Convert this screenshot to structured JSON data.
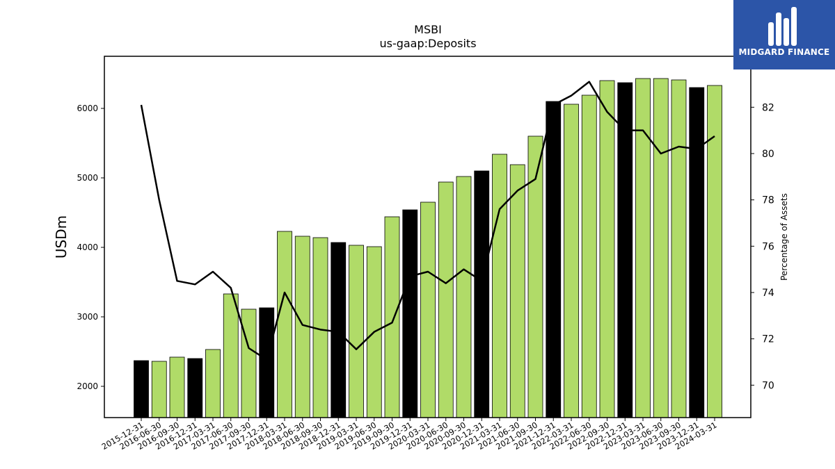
{
  "title": "MSBI",
  "subtitle": "us-gaap:Deposits",
  "logo": {
    "text": "MIDGARD FINANCE",
    "background": "#2c55a8"
  },
  "colors": {
    "bar_regular": "#b0db68",
    "bar_year_end": "#000000",
    "line": "#000000"
  },
  "chart_data": {
    "type": "bar",
    "title": "MSBI",
    "subtitle": "us-gaap:Deposits",
    "ylabel": "USDm",
    "y2label": "Percentage of Assets",
    "ylim": [
      1550,
      6750
    ],
    "y2lim": [
      68.6,
      84.2
    ],
    "yticks": [
      2000,
      3000,
      4000,
      5000,
      6000
    ],
    "y2ticks": [
      70,
      72,
      74,
      76,
      78,
      80,
      82
    ],
    "grid": false,
    "categories": [
      "2015-12-31",
      "2016-06-30",
      "2016-09-30",
      "2016-12-31",
      "2017-03-31",
      "2017-06-30",
      "2017-09-30",
      "2017-12-31",
      "2018-03-31",
      "2018-06-30",
      "2018-09-30",
      "2018-12-31",
      "2019-03-31",
      "2019-06-30",
      "2019-09-30",
      "2019-12-31",
      "2020-03-31",
      "2020-06-30",
      "2020-09-30",
      "2020-12-31",
      "2021-03-31",
      "2021-06-30",
      "2021-09-30",
      "2021-12-31",
      "2022-03-31",
      "2022-06-30",
      "2022-09-30",
      "2022-12-31",
      "2023-03-31",
      "2023-06-30",
      "2023-09-30",
      "2023-12-31",
      "2024-03-31"
    ],
    "series": [
      {
        "type": "bar",
        "axis": "left",
        "values": [
          2370,
          2360,
          2420,
          2400,
          2530,
          3330,
          3110,
          3130,
          4230,
          4160,
          4140,
          4070,
          4030,
          4010,
          4440,
          4540,
          4650,
          4940,
          5020,
          5100,
          5340,
          5190,
          5600,
          6100,
          6060,
          6190,
          6400,
          6370,
          6430,
          6430,
          6410,
          6300,
          6330
        ],
        "highlight": [
          true,
          false,
          false,
          true,
          false,
          false,
          false,
          true,
          false,
          false,
          false,
          true,
          false,
          false,
          false,
          true,
          false,
          false,
          false,
          true,
          false,
          false,
          false,
          true,
          false,
          false,
          false,
          true,
          false,
          false,
          false,
          true,
          false
        ]
      },
      {
        "type": "line",
        "axis": "right",
        "values": [
          82.1,
          78.0,
          74.5,
          74.35,
          74.9,
          74.2,
          71.6,
          71.1,
          74.0,
          72.6,
          72.4,
          72.3,
          71.55,
          72.3,
          72.7,
          74.7,
          74.9,
          74.4,
          75.0,
          74.5,
          77.6,
          78.4,
          78.9,
          82.1,
          82.5,
          83.1,
          81.8,
          81.0,
          81.0,
          80.0,
          80.3,
          80.2,
          80.75
        ]
      }
    ]
  }
}
